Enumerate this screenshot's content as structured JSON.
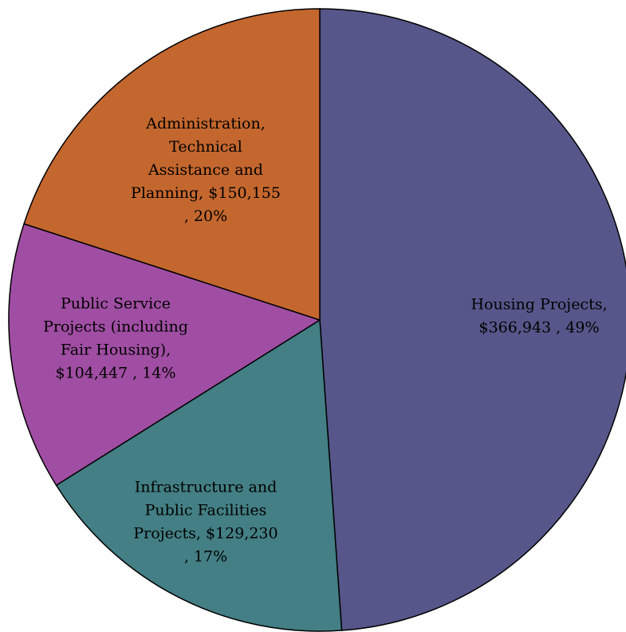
{
  "chart_data": {
    "type": "pie",
    "values": [
      366943,
      129230,
      104447,
      150155
    ],
    "colors": [
      "#56568a",
      "#437f84",
      "#a04ea3",
      "#c4672e"
    ],
    "value_labels": [
      [
        "Housing Projects,",
        "$366,943 , 49%"
      ],
      [
        "Infrastructure and",
        "Public Facilities",
        "Projects, $129,230",
        ", 17%"
      ],
      [
        "Public Service",
        "Projects (including",
        "Fair Housing),",
        "$104,447 , 14%"
      ],
      [
        "Administration,",
        "Technical",
        "Assistance and",
        "Planning, $150,155",
        ", 20%"
      ]
    ]
  }
}
